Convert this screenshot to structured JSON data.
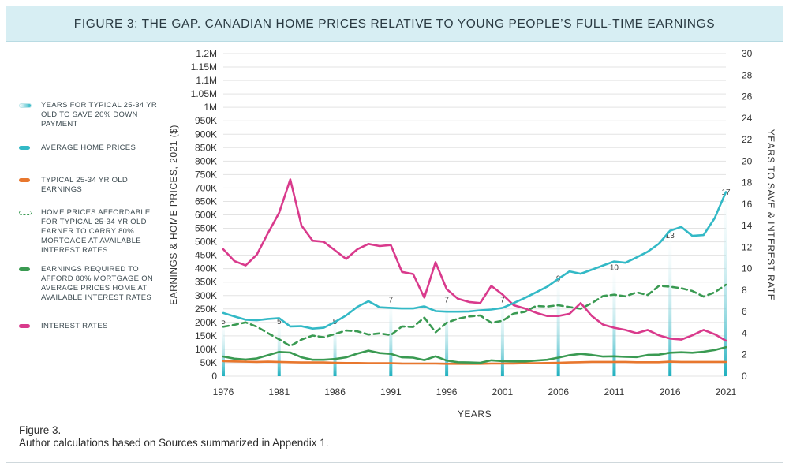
{
  "title": "FIGURE 3: THE GAP. CANADIAN HOME PRICES RELATIVE TO YOUNG PEOPLE’S FULL-TIME EARNINGS",
  "legend": [
    {
      "key": "years",
      "label": "YEARS FOR TYPICAL 25-34 YR OLD TO SAVE 20% DOWN PAYMENT"
    },
    {
      "key": "home",
      "label": "AVERAGE HOME PRICES"
    },
    {
      "key": "earn",
      "label": "TYPICAL 25-34 YR OLD EARNINGS"
    },
    {
      "key": "afford",
      "label": "HOME PRICES AFFORDABLE FOR TYPICAL 25-34 YR OLD EARNER TO CARRY 80% MORTGAGE AT AVAILABLE INTEREST RATES"
    },
    {
      "key": "req",
      "label": "EARNINGS REQUIRED TO AFFORD 80% MORTGAGE ON AVERAGE PRICES HOME AT AVAILABLE INTEREST RATES"
    },
    {
      "key": "rate",
      "label": "INTEREST RATES"
    }
  ],
  "colors": {
    "home": "#33b9c6",
    "earn": "#e8772e",
    "afford": "#3a9a52",
    "req": "#3a9a52",
    "rate": "#d93a8c",
    "years": "#2fb8c6",
    "grid": "#e3e3e3",
    "axis_text": "#333333"
  },
  "note": {
    "line1": "Figure 3.",
    "line2": "Author calculations based on Sources summarized in Appendix 1."
  },
  "chart_data": {
    "type": "line",
    "title": "FIGURE 3: THE GAP. CANADIAN HOME PRICES RELATIVE TO YOUNG PEOPLE’S FULL-TIME EARNINGS",
    "xlabel": "YEARS",
    "ylabel": "EARNINGS & HOME PRICES, 2021 ($)",
    "y2label": "YEARS TO SAVE & INTEREST RATE",
    "xlim": [
      1976,
      2021
    ],
    "ylim": [
      0,
      1200000
    ],
    "y2lim": [
      0,
      30
    ],
    "x_ticks": [
      1976,
      1981,
      1986,
      1991,
      1996,
      2001,
      2006,
      2011,
      2016,
      2021
    ],
    "y_ticks": [
      {
        "v": 0,
        "label": "0"
      },
      {
        "v": 50000,
        "label": "50K"
      },
      {
        "v": 100000,
        "label": "100K"
      },
      {
        "v": 150000,
        "label": "150K"
      },
      {
        "v": 200000,
        "label": "200K"
      },
      {
        "v": 250000,
        "label": "250K"
      },
      {
        "v": 300000,
        "label": "300K"
      },
      {
        "v": 350000,
        "label": "350K"
      },
      {
        "v": 400000,
        "label": "400K"
      },
      {
        "v": 450000,
        "label": "450K"
      },
      {
        "v": 500000,
        "label": "500K"
      },
      {
        "v": 550000,
        "label": "550K"
      },
      {
        "v": 600000,
        "label": "600K"
      },
      {
        "v": 650000,
        "label": "650K"
      },
      {
        "v": 700000,
        "label": "700K"
      },
      {
        "v": 750000,
        "label": "750K"
      },
      {
        "v": 800000,
        "label": "800K"
      },
      {
        "v": 850000,
        "label": "850K"
      },
      {
        "v": 900000,
        "label": "900K"
      },
      {
        "v": 950000,
        "label": "950K"
      },
      {
        "v": 1000000,
        "label": "1M"
      },
      {
        "v": 1050000,
        "label": "1.05M"
      },
      {
        "v": 1100000,
        "label": "1.1M"
      },
      {
        "v": 1150000,
        "label": "1.15M"
      },
      {
        "v": 1200000,
        "label": "1.2M"
      }
    ],
    "y2_ticks": [
      0,
      2,
      4,
      6,
      8,
      10,
      12,
      14,
      16,
      18,
      20,
      22,
      24,
      26,
      28,
      30
    ],
    "x": [
      1976,
      1977,
      1978,
      1979,
      1980,
      1981,
      1982,
      1983,
      1984,
      1985,
      1986,
      1987,
      1988,
      1989,
      1990,
      1991,
      1992,
      1993,
      1994,
      1995,
      1996,
      1997,
      1998,
      1999,
      2000,
      2001,
      2002,
      2003,
      2004,
      2005,
      2006,
      2007,
      2008,
      2009,
      2010,
      2011,
      2012,
      2013,
      2014,
      2015,
      2016,
      2017,
      2018,
      2019,
      2020,
      2021
    ],
    "series": [
      {
        "name": "AVERAGE HOME PRICES",
        "key": "home",
        "axis": "left",
        "style": "solid",
        "values": [
          235000,
          222000,
          210000,
          208000,
          213000,
          216000,
          185000,
          186000,
          177000,
          180000,
          202000,
          226000,
          258000,
          279000,
          256000,
          254000,
          252000,
          252000,
          260000,
          242000,
          240000,
          240000,
          241000,
          245000,
          248000,
          254000,
          272000,
          291000,
          312000,
          333000,
          362000,
          390000,
          381000,
          396000,
          412000,
          427000,
          422000,
          442000,
          463000,
          493000,
          541000,
          555000,
          522000,
          525000,
          588000,
          685000
        ]
      },
      {
        "name": "TYPICAL 25-34 YR OLD EARNINGS",
        "key": "earn",
        "axis": "left",
        "style": "solid",
        "values": [
          56000,
          55000,
          54000,
          53000,
          54000,
          53000,
          52000,
          51000,
          51000,
          51000,
          50000,
          49000,
          49000,
          48000,
          48000,
          48000,
          47000,
          47000,
          47000,
          47000,
          46000,
          46000,
          46000,
          46000,
          47000,
          47000,
          47000,
          48000,
          48000,
          49000,
          50000,
          51000,
          52000,
          53000,
          53000,
          53000,
          53000,
          52000,
          52000,
          52000,
          54000,
          53000,
          53000,
          53000,
          53000,
          53000
        ]
      },
      {
        "name": "HOME PRICES AFFORDABLE FOR TYPICAL 25-34 YR OLD EARNER TO CARRY 80% MORTGAGE AT AVAILABLE INTEREST RATES",
        "key": "afford",
        "axis": "left",
        "style": "dashed",
        "values": [
          184000,
          191000,
          200000,
          184000,
          160000,
          137000,
          112000,
          136000,
          151000,
          145000,
          157000,
          170000,
          167000,
          155000,
          159000,
          153000,
          185000,
          183000,
          218000,
          163000,
          199000,
          214000,
          222000,
          226000,
          199000,
          206000,
          233000,
          239000,
          261000,
          259000,
          264000,
          257000,
          251000,
          272000,
          298000,
          303000,
          297000,
          312000,
          302000,
          336000,
          333000,
          327000,
          317000,
          296000,
          312000,
          340000
        ]
      },
      {
        "name": "EARNINGS REQUIRED TO AFFORD 80% MORTGAGE ON AVERAGE PRICES HOME AT AVAILABLE INTEREST RATES",
        "key": "req",
        "axis": "left",
        "style": "solid",
        "values": [
          73000,
          65000,
          62000,
          66000,
          78000,
          90000,
          88000,
          70000,
          61000,
          61000,
          64000,
          70000,
          84000,
          95000,
          86000,
          83000,
          70000,
          69000,
          60000,
          74000,
          58000,
          52000,
          51000,
          50000,
          59000,
          56000,
          55000,
          55000,
          58000,
          61000,
          69000,
          78000,
          83000,
          79000,
          73000,
          74000,
          72000,
          71000,
          79000,
          80000,
          87000,
          89000,
          87000,
          91000,
          97000,
          108000
        ]
      },
      {
        "name": "INTEREST RATES",
        "key": "rate",
        "axis": "right",
        "style": "solid",
        "values": [
          11.8,
          10.7,
          10.3,
          11.3,
          13.3,
          15.2,
          18.3,
          14.0,
          12.6,
          12.5,
          11.7,
          10.9,
          11.8,
          12.3,
          12.1,
          12.2,
          9.7,
          9.5,
          7.3,
          10.6,
          8.1,
          7.2,
          6.9,
          6.8,
          8.4,
          7.6,
          6.6,
          6.3,
          5.9,
          5.6,
          5.6,
          5.8,
          6.8,
          5.6,
          4.8,
          4.5,
          4.3,
          4.0,
          4.3,
          3.8,
          3.5,
          3.4,
          3.8,
          4.3,
          3.9,
          3.3
        ]
      },
      {
        "name": "YEARS FOR TYPICAL 25-34 YR OLD TO SAVE 20% DOWN PAYMENT",
        "key": "years",
        "axis": "right",
        "style": "bars",
        "points": [
          {
            "x": 1976,
            "y": 5
          },
          {
            "x": 1981,
            "y": 5
          },
          {
            "x": 1986,
            "y": 5
          },
          {
            "x": 1991,
            "y": 7
          },
          {
            "x": 1996,
            "y": 7
          },
          {
            "x": 2001,
            "y": 7
          },
          {
            "x": 2006,
            "y": 9
          },
          {
            "x": 2011,
            "y": 10
          },
          {
            "x": 2016,
            "y": 13
          },
          {
            "x": 2021,
            "y": 17
          }
        ]
      }
    ]
  }
}
